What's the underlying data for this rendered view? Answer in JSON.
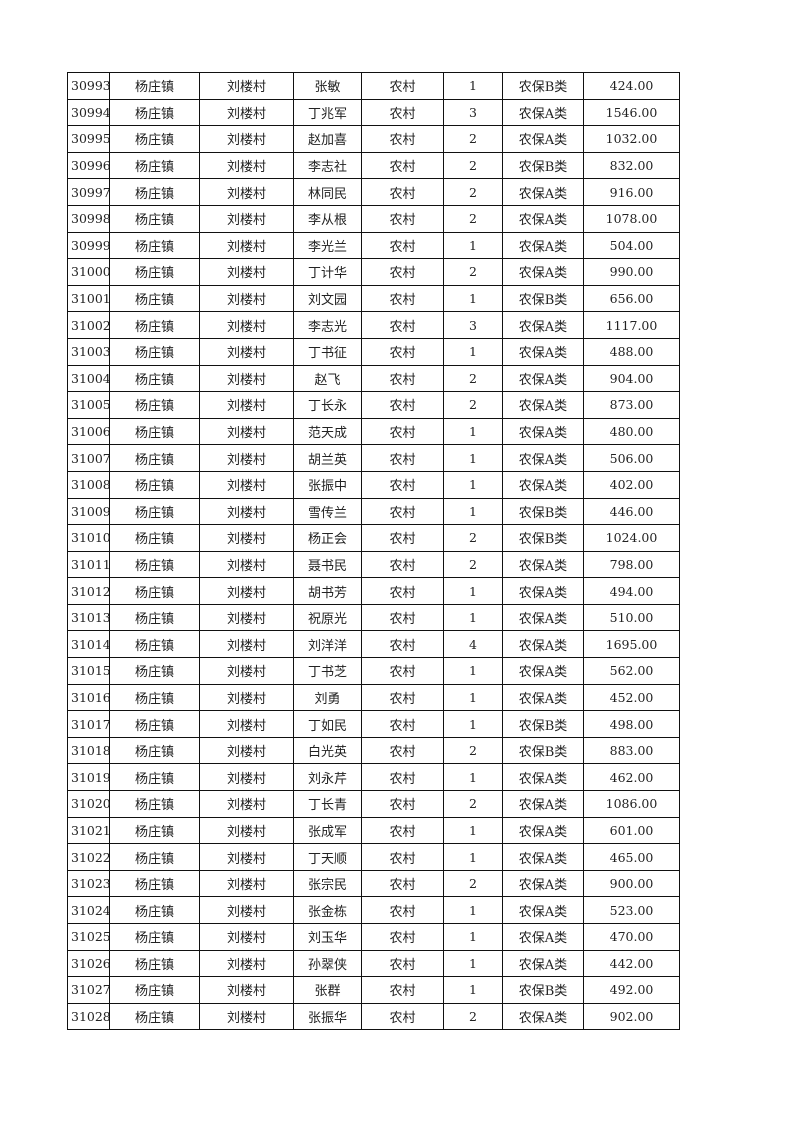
{
  "table": {
    "rows": [
      [
        "30993",
        "杨庄镇",
        "刘楼村",
        "张敏",
        "农村",
        "1",
        "农保B类",
        "424.00"
      ],
      [
        "30994",
        "杨庄镇",
        "刘楼村",
        "丁兆军",
        "农村",
        "3",
        "农保A类",
        "1546.00"
      ],
      [
        "30995",
        "杨庄镇",
        "刘楼村",
        "赵加喜",
        "农村",
        "2",
        "农保A类",
        "1032.00"
      ],
      [
        "30996",
        "杨庄镇",
        "刘楼村",
        "李志社",
        "农村",
        "2",
        "农保B类",
        "832.00"
      ],
      [
        "30997",
        "杨庄镇",
        "刘楼村",
        "林同民",
        "农村",
        "2",
        "农保A类",
        "916.00"
      ],
      [
        "30998",
        "杨庄镇",
        "刘楼村",
        "李从根",
        "农村",
        "2",
        "农保A类",
        "1078.00"
      ],
      [
        "30999",
        "杨庄镇",
        "刘楼村",
        "李光兰",
        "农村",
        "1",
        "农保A类",
        "504.00"
      ],
      [
        "31000",
        "杨庄镇",
        "刘楼村",
        "丁计华",
        "农村",
        "2",
        "农保A类",
        "990.00"
      ],
      [
        "31001",
        "杨庄镇",
        "刘楼村",
        "刘文园",
        "农村",
        "1",
        "农保B类",
        "656.00"
      ],
      [
        "31002",
        "杨庄镇",
        "刘楼村",
        "李志光",
        "农村",
        "3",
        "农保A类",
        "1117.00"
      ],
      [
        "31003",
        "杨庄镇",
        "刘楼村",
        "丁书征",
        "农村",
        "1",
        "农保A类",
        "488.00"
      ],
      [
        "31004",
        "杨庄镇",
        "刘楼村",
        "赵飞",
        "农村",
        "2",
        "农保A类",
        "904.00"
      ],
      [
        "31005",
        "杨庄镇",
        "刘楼村",
        "丁长永",
        "农村",
        "2",
        "农保A类",
        "873.00"
      ],
      [
        "31006",
        "杨庄镇",
        "刘楼村",
        "范天成",
        "农村",
        "1",
        "农保A类",
        "480.00"
      ],
      [
        "31007",
        "杨庄镇",
        "刘楼村",
        "胡兰英",
        "农村",
        "1",
        "农保A类",
        "506.00"
      ],
      [
        "31008",
        "杨庄镇",
        "刘楼村",
        "张振中",
        "农村",
        "1",
        "农保A类",
        "402.00"
      ],
      [
        "31009",
        "杨庄镇",
        "刘楼村",
        "雪传兰",
        "农村",
        "1",
        "农保B类",
        "446.00"
      ],
      [
        "31010",
        "杨庄镇",
        "刘楼村",
        "杨正会",
        "农村",
        "2",
        "农保B类",
        "1024.00"
      ],
      [
        "31011",
        "杨庄镇",
        "刘楼村",
        "聂书民",
        "农村",
        "2",
        "农保A类",
        "798.00"
      ],
      [
        "31012",
        "杨庄镇",
        "刘楼村",
        "胡书芳",
        "农村",
        "1",
        "农保A类",
        "494.00"
      ],
      [
        "31013",
        "杨庄镇",
        "刘楼村",
        "祝原光",
        "农村",
        "1",
        "农保A类",
        "510.00"
      ],
      [
        "31014",
        "杨庄镇",
        "刘楼村",
        "刘洋洋",
        "农村",
        "4",
        "农保A类",
        "1695.00"
      ],
      [
        "31015",
        "杨庄镇",
        "刘楼村",
        "丁书芝",
        "农村",
        "1",
        "农保A类",
        "562.00"
      ],
      [
        "31016",
        "杨庄镇",
        "刘楼村",
        "刘勇",
        "农村",
        "1",
        "农保A类",
        "452.00"
      ],
      [
        "31017",
        "杨庄镇",
        "刘楼村",
        "丁如民",
        "农村",
        "1",
        "农保B类",
        "498.00"
      ],
      [
        "31018",
        "杨庄镇",
        "刘楼村",
        "白光英",
        "农村",
        "2",
        "农保B类",
        "883.00"
      ],
      [
        "31019",
        "杨庄镇",
        "刘楼村",
        "刘永芹",
        "农村",
        "1",
        "农保A类",
        "462.00"
      ],
      [
        "31020",
        "杨庄镇",
        "刘楼村",
        "丁长青",
        "农村",
        "2",
        "农保A类",
        "1086.00"
      ],
      [
        "31021",
        "杨庄镇",
        "刘楼村",
        "张成军",
        "农村",
        "1",
        "农保A类",
        "601.00"
      ],
      [
        "31022",
        "杨庄镇",
        "刘楼村",
        "丁天顺",
        "农村",
        "1",
        "农保A类",
        "465.00"
      ],
      [
        "31023",
        "杨庄镇",
        "刘楼村",
        "张宗民",
        "农村",
        "2",
        "农保A类",
        "900.00"
      ],
      [
        "31024",
        "杨庄镇",
        "刘楼村",
        "张金栋",
        "农村",
        "1",
        "农保A类",
        "523.00"
      ],
      [
        "31025",
        "杨庄镇",
        "刘楼村",
        "刘玉华",
        "农村",
        "1",
        "农保A类",
        "470.00"
      ],
      [
        "31026",
        "杨庄镇",
        "刘楼村",
        "孙翠侠",
        "农村",
        "1",
        "农保A类",
        "442.00"
      ],
      [
        "31027",
        "杨庄镇",
        "刘楼村",
        "张群",
        "农村",
        "1",
        "农保B类",
        "492.00"
      ],
      [
        "31028",
        "杨庄镇",
        "刘楼村",
        "张振华",
        "农村",
        "2",
        "农保A类",
        "902.00"
      ]
    ]
  }
}
